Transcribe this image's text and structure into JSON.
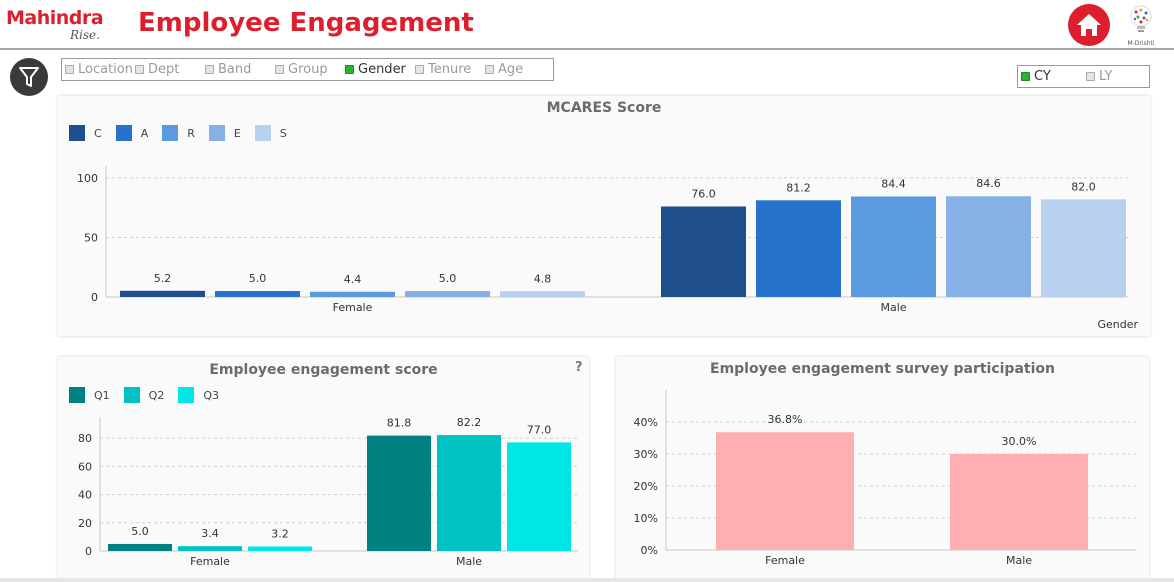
{
  "header": {
    "brand_name": "Mahindra",
    "brand_tagline": "Rise.",
    "title": "Employee Engagement",
    "mdrishti_label": "M-Drishti"
  },
  "filters": {
    "items": [
      {
        "label": "Location",
        "selected": false
      },
      {
        "label": "Dept",
        "selected": false
      },
      {
        "label": "Band",
        "selected": false
      },
      {
        "label": "Group",
        "selected": false
      },
      {
        "label": "Gender",
        "selected": true
      },
      {
        "label": "Tenure",
        "selected": false
      },
      {
        "label": "Age",
        "selected": false
      }
    ],
    "year": [
      {
        "label": "CY",
        "selected": true
      },
      {
        "label": "LY",
        "selected": false
      }
    ]
  },
  "colors": {
    "brand_red": "#dd1f2d",
    "mcares": [
      "#1f4e8c",
      "#2672cc",
      "#5b9ade",
      "#86b0e6",
      "#b8d1f1"
    ],
    "engagement": [
      "#008080",
      "#00c2c2",
      "#00e6e6"
    ],
    "participation": "#ffafaf"
  },
  "chart_data": [
    {
      "type": "bar",
      "title": "MCARES Score",
      "categories": [
        "Female",
        "Male"
      ],
      "series": [
        {
          "name": "C",
          "values": [
            5.2,
            76.0
          ]
        },
        {
          "name": "A",
          "values": [
            5.0,
            81.2
          ]
        },
        {
          "name": "R",
          "values": [
            4.4,
            84.4
          ]
        },
        {
          "name": "E",
          "values": [
            5.0,
            84.6
          ]
        },
        {
          "name": "S",
          "values": [
            4.8,
            82.0
          ]
        }
      ],
      "labels": [
        [
          "5.2",
          "76.0"
        ],
        [
          "5.0",
          "81.2"
        ],
        [
          "4.4",
          "84.4"
        ],
        [
          "5.0",
          "84.6"
        ],
        [
          "4.8",
          "82.0"
        ]
      ],
      "yticks": [
        "0",
        "50",
        "100"
      ],
      "ylim": [
        0,
        110
      ],
      "xlabel": "Gender",
      "ylabel": "",
      "grid": true,
      "legend": "top-left"
    },
    {
      "type": "bar",
      "title": "Employee engagement score",
      "help": "?",
      "categories": [
        "Female",
        "Male"
      ],
      "series": [
        {
          "name": "Q1",
          "values": [
            5.0,
            81.8
          ]
        },
        {
          "name": "Q2",
          "values": [
            3.4,
            82.2
          ]
        },
        {
          "name": "Q3",
          "values": [
            3.2,
            77.0
          ]
        }
      ],
      "labels": [
        [
          "5.0",
          "81.8"
        ],
        [
          "3.4",
          "82.2"
        ],
        [
          "3.2",
          "77.0"
        ]
      ],
      "yticks": [
        "0",
        "20",
        "40",
        "60",
        "80"
      ],
      "ylim": [
        0,
        95
      ],
      "xlabel": "",
      "ylabel": "",
      "grid": true,
      "legend": "top-left"
    },
    {
      "type": "bar",
      "title": "Employee engagement survey participation",
      "categories": [
        "Female",
        "Male"
      ],
      "series": [
        {
          "name": "Participation",
          "values": [
            36.8,
            30.0
          ]
        }
      ],
      "labels": [
        [
          "36.8%",
          "30.0%"
        ]
      ],
      "yticks": [
        "0%",
        "10%",
        "20%",
        "30%",
        "40%"
      ],
      "ylim": [
        0,
        50
      ],
      "xlabel": "",
      "ylabel": "",
      "grid": true,
      "legend": "none"
    }
  ]
}
